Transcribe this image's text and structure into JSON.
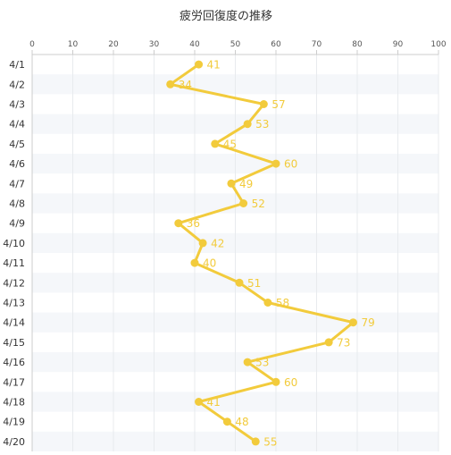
{
  "chart_data": {
    "type": "line",
    "orientation": "horizontal",
    "title": "疲労回復度の推移",
    "categories": [
      "4/1",
      "4/2",
      "4/3",
      "4/4",
      "4/5",
      "4/6",
      "4/7",
      "4/8",
      "4/9",
      "4/10",
      "4/11",
      "4/12",
      "4/13",
      "4/14",
      "4/15",
      "4/16",
      "4/17",
      "4/18",
      "4/19",
      "4/20"
    ],
    "values": [
      41,
      34,
      57,
      53,
      45,
      60,
      49,
      52,
      36,
      42,
      40,
      51,
      58,
      79,
      73,
      53,
      60,
      41,
      48,
      55
    ],
    "xlim": [
      0,
      100
    ],
    "xticks": [
      0,
      10,
      20,
      30,
      40,
      50,
      60,
      70,
      80,
      90,
      100
    ],
    "axis_position": "top",
    "grid": true,
    "legend": "none",
    "colors": {
      "line": "#f2cb3c",
      "label": "#f2cb3c",
      "band": "#f5f7fa",
      "grid": "#e8ebee",
      "axis": "#cccccc"
    }
  }
}
